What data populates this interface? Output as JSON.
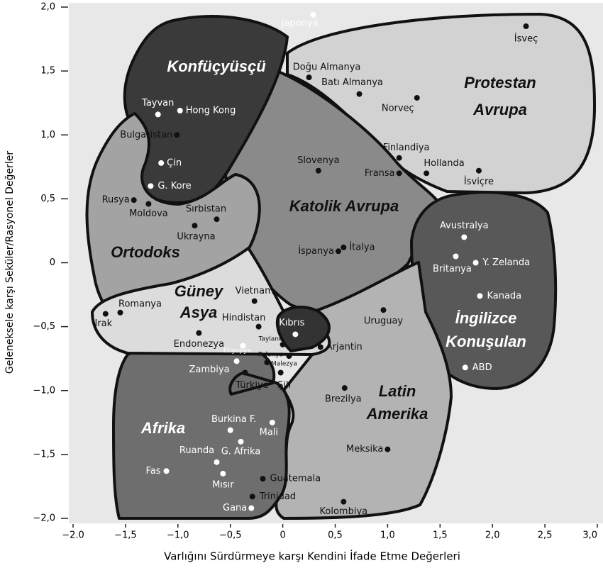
{
  "chart_data": {
    "type": "scatter",
    "xlabel": "Varlığını Sürdürmeye karşı Kendini İfade Etme Değerleri",
    "ylabel": "Geleneksele karşı Seküler/Rasyonel Değerler",
    "xlim": [
      -2,
      3
    ],
    "ylim": [
      -2,
      2
    ],
    "xticks": [
      {
        "value": -2,
        "label": "−2.0"
      },
      {
        "value": -1.5,
        "label": "−1,5"
      },
      {
        "value": -1,
        "label": "−1,0"
      },
      {
        "value": -0.5,
        "label": "−0,5"
      },
      0,
      {
        "value": 0.5,
        "label": "0,5"
      },
      {
        "value": 1,
        "label": "1,0"
      },
      {
        "value": 1.5,
        "label": "1,5"
      },
      {
        "value": 2,
        "label": "2,0"
      },
      {
        "value": 2.5,
        "label": "2,5"
      },
      {
        "value": 3,
        "label": "3,0"
      }
    ],
    "yticks": [
      {
        "value": 2,
        "label": "2,0"
      },
      {
        "value": 1.5,
        "label": "1,5"
      },
      {
        "value": 1,
        "label": "1,0"
      },
      {
        "value": 0.5,
        "label": "0,5"
      },
      0,
      {
        "value": -0.5,
        "label": "−0,5"
      },
      {
        "value": -1,
        "label": "−1,0"
      },
      {
        "value": -1.5,
        "label": "−1,5"
      },
      {
        "value": -2,
        "label": "−2,0"
      }
    ],
    "labels": [
      "Japonya",
      "İsveç",
      "Doğu Almanya",
      "Batı Almanya",
      "Norveç",
      "Tayvan",
      "Hong Kong",
      "Bulgaristan",
      "Finlandiya",
      "Slovenya",
      "Fransa",
      "Hollanda",
      "İsviçre",
      "Çin",
      "G. Kore",
      "Rusya",
      "Moldova",
      "Sırbistan",
      "Ukrayna",
      "Avustralya",
      "İspanya",
      "İtalya",
      "Britanya",
      "Y. Zelanda",
      "Kanada",
      "Vietnam",
      "Romanya",
      "Irak",
      "Uruguay",
      "Hindistan",
      "Kıbrıs",
      "Endonezya",
      "Tayland",
      "Arjantin",
      "Etiyopya",
      "Polonya",
      "Malezya",
      "Zambiya",
      "Türkiye",
      "Şili",
      "ABD",
      "Brezilya",
      "Burkina F.",
      "Mali",
      "G. Afrika",
      "Meksika",
      "Ruanda",
      "Fas",
      "Mısır",
      "Guatemala",
      "Trinidad",
      "Kolombiya",
      "Gana"
    ],
    "x": [
      0.29,
      2.32,
      0.25,
      0.73,
      1.28,
      -1.19,
      -0.98,
      -1.01,
      1.11,
      0.34,
      1.11,
      1.37,
      1.87,
      -1.16,
      -1.26,
      -1.42,
      -1.28,
      -0.63,
      -0.84,
      1.73,
      0.53,
      0.58,
      1.65,
      1.84,
      1.88,
      -0.27,
      -1.55,
      -1.69,
      0.96,
      -0.23,
      0.12,
      -0.8,
      0,
      0.36,
      -0.38,
      0.06,
      -0.15,
      -0.44,
      -0.36,
      -0.02,
      1.74,
      0.59,
      -0.5,
      -0.1,
      -0.4,
      1,
      -0.63,
      -1.11,
      -0.57,
      -0.19,
      -0.29,
      0.58,
      -0.3
    ],
    "y": [
      1.94,
      1.85,
      1.45,
      1.32,
      1.29,
      1.16,
      1.19,
      1,
      0.82,
      0.72,
      0.7,
      0.7,
      0.72,
      0.78,
      0.6,
      0.49,
      0.46,
      0.34,
      0.29,
      0.2,
      0.09,
      0.12,
      0.05,
      0,
      -0.26,
      -0.3,
      -0.39,
      -0.4,
      -0.37,
      -0.5,
      -0.56,
      -0.55,
      -0.64,
      -0.66,
      -0.65,
      -0.73,
      -0.78,
      -0.77,
      -0.86,
      -0.86,
      -0.82,
      -0.98,
      -1.31,
      -1.25,
      -1.4,
      -1.46,
      -1.56,
      -1.63,
      -1.65,
      -1.69,
      -1.83,
      -1.87,
      -1.92
    ],
    "point_colors": [
      "#ffffff",
      "#111111",
      "#111111",
      "#111111",
      "#111111",
      "#ffffff",
      "#ffffff",
      "#111111",
      "#111111",
      "#111111",
      "#111111",
      "#111111",
      "#111111",
      "#ffffff",
      "#ffffff",
      "#111111",
      "#111111",
      "#111111",
      "#111111",
      "#ffffff",
      "#111111",
      "#111111",
      "#ffffff",
      "#ffffff",
      "#ffffff",
      "#111111",
      "#111111",
      "#111111",
      "#111111",
      "#111111",
      "#ffffff",
      "#111111",
      "#111111",
      "#111111",
      "#ffffff",
      "#111111",
      "#111111",
      "#ffffff",
      "#111111",
      "#111111",
      "#ffffff",
      "#111111",
      "#ffffff",
      "#ffffff",
      "#ffffff",
      "#111111",
      "#ffffff",
      "#ffffff",
      "#ffffff",
      "#111111",
      "#111111",
      "#111111",
      "#ffffff"
    ],
    "regions": [
      {
        "lines": [
          "Protestan",
          "Avrupa"
        ],
        "fill": "#d2d2d2",
        "text_color": "#111111"
      },
      {
        "lines": [
          "Katolik Avrupa"
        ],
        "fill": "#8a8a8a",
        "text_color": "#111111"
      },
      {
        "lines": [
          "Konfüçyüsçü"
        ],
        "fill": "#3a3a3a",
        "text_color": "#ffffff"
      },
      {
        "lines": [
          "Ortodoks"
        ],
        "fill": "#a3a3a3",
        "text_color": "#111111"
      },
      {
        "lines": [
          "İngilizce",
          "Konuşulan"
        ],
        "fill": "#585858",
        "text_color": "#ffffff"
      },
      {
        "lines": [
          "Latin",
          "Amerika"
        ],
        "fill": "#b3b3b3",
        "text_color": "#111111"
      },
      {
        "lines": [
          "Afrika"
        ],
        "fill": "#6e6e6e",
        "text_color": "#ffffff"
      },
      {
        "lines": [
          "Güney",
          "Asya"
        ],
        "fill": "#dcdcdc",
        "text_color": "#111111"
      }
    ]
  }
}
